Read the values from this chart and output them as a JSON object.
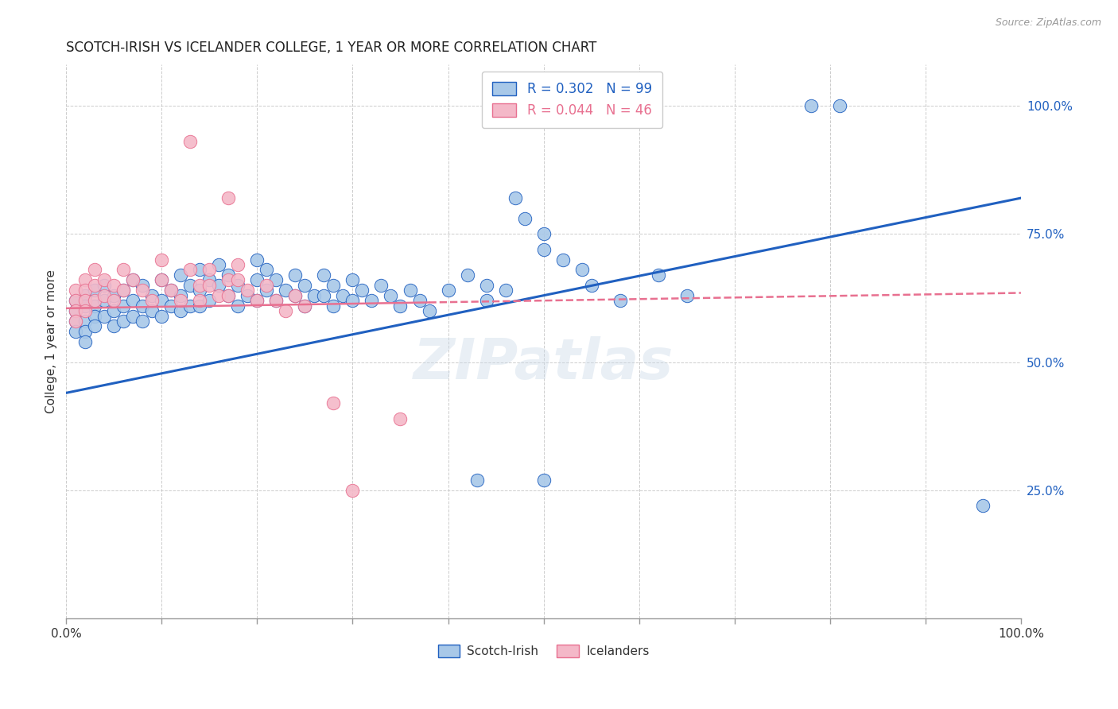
{
  "title": "SCOTCH-IRISH VS ICELANDER COLLEGE, 1 YEAR OR MORE CORRELATION CHART",
  "source": "Source: ZipAtlas.com",
  "ylabel": "College, 1 year or more",
  "ytick_labels": [
    "25.0%",
    "50.0%",
    "75.0%",
    "100.0%"
  ],
  "ytick_positions": [
    0.25,
    0.5,
    0.75,
    1.0
  ],
  "xlim": [
    0.0,
    1.0
  ],
  "ylim": [
    0.0,
    1.08
  ],
  "legend_label_blue": "Scotch-Irish",
  "legend_label_pink": "Icelanders",
  "R_blue": 0.302,
  "N_blue": 99,
  "R_pink": 0.044,
  "N_pink": 46,
  "blue_color": "#a8c8e8",
  "pink_color": "#f4b8c8",
  "blue_line_color": "#2060c0",
  "pink_line_color": "#e87090",
  "watermark": "ZIPatlas",
  "blue_line_x0": 0.0,
  "blue_line_y0": 0.44,
  "blue_line_x1": 1.0,
  "blue_line_y1": 0.82,
  "pink_line_x0": 0.0,
  "pink_line_y0": 0.605,
  "pink_line_x1": 1.0,
  "pink_line_y1": 0.635,
  "scatter_blue": [
    [
      0.01,
      0.62
    ],
    [
      0.01,
      0.6
    ],
    [
      0.01,
      0.58
    ],
    [
      0.01,
      0.56
    ],
    [
      0.02,
      0.63
    ],
    [
      0.02,
      0.61
    ],
    [
      0.02,
      0.58
    ],
    [
      0.02,
      0.56
    ],
    [
      0.02,
      0.54
    ],
    [
      0.03,
      0.64
    ],
    [
      0.03,
      0.61
    ],
    [
      0.03,
      0.59
    ],
    [
      0.03,
      0.57
    ],
    [
      0.04,
      0.65
    ],
    [
      0.04,
      0.62
    ],
    [
      0.04,
      0.59
    ],
    [
      0.05,
      0.63
    ],
    [
      0.05,
      0.6
    ],
    [
      0.05,
      0.57
    ],
    [
      0.06,
      0.64
    ],
    [
      0.06,
      0.61
    ],
    [
      0.06,
      0.58
    ],
    [
      0.07,
      0.66
    ],
    [
      0.07,
      0.62
    ],
    [
      0.07,
      0.59
    ],
    [
      0.08,
      0.65
    ],
    [
      0.08,
      0.61
    ],
    [
      0.08,
      0.58
    ],
    [
      0.09,
      0.63
    ],
    [
      0.09,
      0.6
    ],
    [
      0.1,
      0.66
    ],
    [
      0.1,
      0.62
    ],
    [
      0.1,
      0.59
    ],
    [
      0.11,
      0.64
    ],
    [
      0.11,
      0.61
    ],
    [
      0.12,
      0.67
    ],
    [
      0.12,
      0.63
    ],
    [
      0.12,
      0.6
    ],
    [
      0.13,
      0.65
    ],
    [
      0.13,
      0.61
    ],
    [
      0.14,
      0.68
    ],
    [
      0.14,
      0.64
    ],
    [
      0.14,
      0.61
    ],
    [
      0.15,
      0.66
    ],
    [
      0.15,
      0.62
    ],
    [
      0.16,
      0.69
    ],
    [
      0.16,
      0.65
    ],
    [
      0.17,
      0.67
    ],
    [
      0.17,
      0.63
    ],
    [
      0.18,
      0.65
    ],
    [
      0.18,
      0.61
    ],
    [
      0.19,
      0.63
    ],
    [
      0.2,
      0.7
    ],
    [
      0.2,
      0.66
    ],
    [
      0.2,
      0.62
    ],
    [
      0.21,
      0.68
    ],
    [
      0.21,
      0.64
    ],
    [
      0.22,
      0.66
    ],
    [
      0.22,
      0.62
    ],
    [
      0.23,
      0.64
    ],
    [
      0.24,
      0.67
    ],
    [
      0.24,
      0.63
    ],
    [
      0.25,
      0.65
    ],
    [
      0.25,
      0.61
    ],
    [
      0.26,
      0.63
    ],
    [
      0.27,
      0.67
    ],
    [
      0.27,
      0.63
    ],
    [
      0.28,
      0.65
    ],
    [
      0.28,
      0.61
    ],
    [
      0.29,
      0.63
    ],
    [
      0.3,
      0.66
    ],
    [
      0.3,
      0.62
    ],
    [
      0.31,
      0.64
    ],
    [
      0.32,
      0.62
    ],
    [
      0.33,
      0.65
    ],
    [
      0.34,
      0.63
    ],
    [
      0.35,
      0.61
    ],
    [
      0.36,
      0.64
    ],
    [
      0.37,
      0.62
    ],
    [
      0.38,
      0.6
    ],
    [
      0.4,
      0.64
    ],
    [
      0.42,
      0.67
    ],
    [
      0.44,
      0.65
    ],
    [
      0.44,
      0.62
    ],
    [
      0.46,
      0.64
    ],
    [
      0.47,
      0.82
    ],
    [
      0.48,
      0.78
    ],
    [
      0.5,
      0.75
    ],
    [
      0.5,
      0.72
    ],
    [
      0.52,
      0.7
    ],
    [
      0.54,
      0.68
    ],
    [
      0.55,
      0.65
    ],
    [
      0.58,
      0.62
    ],
    [
      0.62,
      0.67
    ],
    [
      0.65,
      0.63
    ],
    [
      0.78,
      1.0
    ],
    [
      0.81,
      1.0
    ],
    [
      0.96,
      0.22
    ],
    [
      0.43,
      0.27
    ],
    [
      0.5,
      0.27
    ]
  ],
  "scatter_pink": [
    [
      0.01,
      0.64
    ],
    [
      0.01,
      0.62
    ],
    [
      0.01,
      0.6
    ],
    [
      0.01,
      0.58
    ],
    [
      0.02,
      0.66
    ],
    [
      0.02,
      0.64
    ],
    [
      0.02,
      0.62
    ],
    [
      0.02,
      0.6
    ],
    [
      0.03,
      0.68
    ],
    [
      0.03,
      0.65
    ],
    [
      0.03,
      0.62
    ],
    [
      0.04,
      0.66
    ],
    [
      0.04,
      0.63
    ],
    [
      0.05,
      0.65
    ],
    [
      0.05,
      0.62
    ],
    [
      0.06,
      0.68
    ],
    [
      0.06,
      0.64
    ],
    [
      0.07,
      0.66
    ],
    [
      0.08,
      0.64
    ],
    [
      0.09,
      0.62
    ],
    [
      0.1,
      0.7
    ],
    [
      0.1,
      0.66
    ],
    [
      0.11,
      0.64
    ],
    [
      0.12,
      0.62
    ],
    [
      0.13,
      0.68
    ],
    [
      0.14,
      0.65
    ],
    [
      0.14,
      0.62
    ],
    [
      0.15,
      0.68
    ],
    [
      0.15,
      0.65
    ],
    [
      0.16,
      0.63
    ],
    [
      0.17,
      0.66
    ],
    [
      0.17,
      0.63
    ],
    [
      0.18,
      0.69
    ],
    [
      0.18,
      0.66
    ],
    [
      0.19,
      0.64
    ],
    [
      0.2,
      0.62
    ],
    [
      0.21,
      0.65
    ],
    [
      0.22,
      0.62
    ],
    [
      0.23,
      0.6
    ],
    [
      0.24,
      0.63
    ],
    [
      0.25,
      0.61
    ],
    [
      0.13,
      0.93
    ],
    [
      0.17,
      0.82
    ],
    [
      0.28,
      0.42
    ],
    [
      0.35,
      0.39
    ],
    [
      0.3,
      0.25
    ]
  ]
}
